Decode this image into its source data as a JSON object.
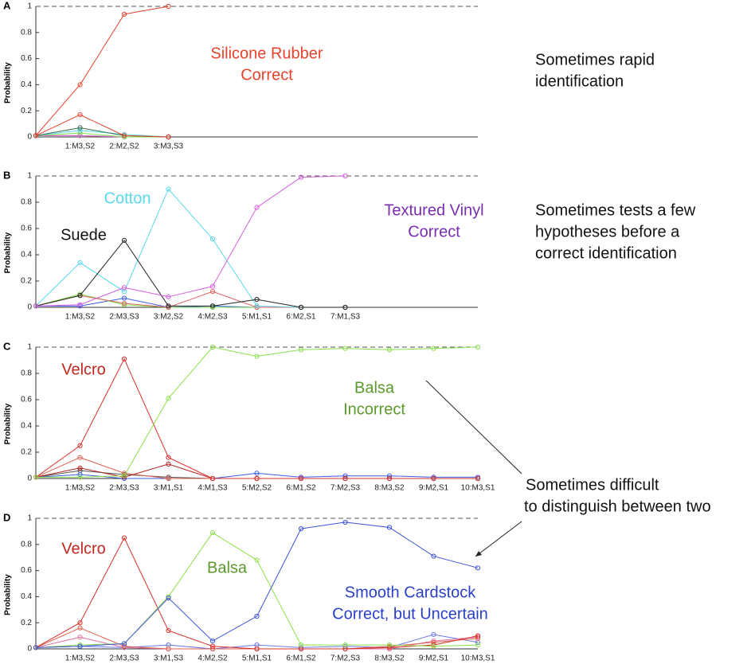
{
  "chart_data": [
    {
      "type": "line",
      "label": "A",
      "ylabel": "Probability",
      "categories": [
        null,
        "1:M3,S2",
        "2:M2,S2",
        "3:M3,S3"
      ],
      "ylim": [
        0,
        1
      ],
      "yticks": [
        0,
        0.2,
        0.4,
        0.6,
        0.8,
        1
      ],
      "hline": 1,
      "series": [
        {
          "color": "#e06a3a",
          "values": [
            0.01,
            0.01,
            0.0,
            0.0
          ]
        },
        {
          "color": "#d65ee0",
          "values": [
            0.01,
            0.01,
            0.0,
            0.0
          ]
        },
        {
          "color": "#7ee04a",
          "values": [
            0.01,
            0.03,
            0.0,
            0.0
          ]
        },
        {
          "color": "#5ad8ec",
          "values": [
            0.01,
            0.05,
            0.02,
            0.0
          ]
        },
        {
          "color": "#3a6a50",
          "values": [
            0.01,
            0.07,
            0.01,
            0.0
          ]
        },
        {
          "color": "#e8412c",
          "values": [
            0.01,
            0.17,
            0.01,
            0.0
          ]
        },
        {
          "color": "#e8412c",
          "values": [
            0.01,
            0.4,
            0.94,
            1.0
          ]
        }
      ],
      "annotations": [
        {
          "lines": [
            "Silicone Rubber",
            "Correct"
          ],
          "color": "#e8412c"
        }
      ]
    },
    {
      "type": "line",
      "label": "B",
      "ylabel": "Probability",
      "categories": [
        null,
        "1:M3,S2",
        "2:M3,S3",
        "3:M2,S2",
        "4:M2,S3",
        "5:M1,S1",
        "6:M2,S1",
        "7:M1,S3"
      ],
      "ylim": [
        0,
        1
      ],
      "yticks": [
        0,
        0.2,
        0.4,
        0.6,
        0.8,
        1
      ],
      "hline": 1,
      "series": [
        {
          "color": "#3c5ce6",
          "values": [
            0.01,
            0.01,
            0.07,
            0.0,
            0.01,
            0.0,
            0.0,
            0.0
          ]
        },
        {
          "color": "#7ee04a",
          "values": [
            0.01,
            0.1,
            0.02,
            0.0,
            0.0,
            0.0,
            0.0,
            0.0
          ]
        },
        {
          "color": "#e06060",
          "values": [
            0.01,
            0.09,
            0.03,
            0.0,
            0.12,
            0.0,
            0.0,
            0.0
          ]
        },
        {
          "color": "#5ad8ec",
          "values": [
            0.01,
            0.34,
            0.12,
            0.9,
            0.52,
            0.01,
            0.0,
            0.0
          ]
        },
        {
          "color": "#222222",
          "values": [
            0.01,
            0.09,
            0.51,
            0.01,
            0.01,
            0.06,
            0.0,
            0.0
          ]
        },
        {
          "color": "#d65ee0",
          "values": [
            0.01,
            0.02,
            0.15,
            0.08,
            0.16,
            0.76,
            0.99,
            1.0
          ]
        }
      ],
      "annotations": [
        {
          "lines": [
            "Cotton"
          ],
          "color": "#5ad8ec"
        },
        {
          "lines": [
            "Suede"
          ],
          "color": "#111111"
        },
        {
          "lines": [
            "Textured Vinyl",
            "Correct"
          ],
          "color": "#7a2db0"
        }
      ]
    },
    {
      "type": "line",
      "label": "C",
      "ylabel": "Probability",
      "categories": [
        null,
        "1:M3,S2",
        "2:M3,S3",
        "3:M1,S1",
        "4:M1,S3",
        "5:M2,S2",
        "6:M1,S2",
        "7:M2,S3",
        "8:M3,S2",
        "9:M2,S1",
        "10:M3,S1"
      ],
      "ylim": [
        0,
        1
      ],
      "yticks": [
        0,
        0.2,
        0.4,
        0.6,
        0.8,
        1
      ],
      "hline": 1,
      "series": [
        {
          "color": "#555555",
          "values": [
            0.01,
            0.06,
            0.03,
            0.01,
            0.0,
            0.0,
            0.0,
            0.0,
            0.0,
            0.0,
            0.0
          ]
        },
        {
          "color": "#3c5ce6",
          "values": [
            0.01,
            0.03,
            0.0,
            0.0,
            0.0,
            0.04,
            0.01,
            0.02,
            0.02,
            0.01,
            0.01
          ]
        },
        {
          "color": "#b82020",
          "values": [
            0.01,
            0.08,
            0.01,
            0.11,
            0.0,
            0.0,
            0.0,
            0.0,
            0.0,
            0.0,
            0.0
          ]
        },
        {
          "color": "#e06050",
          "values": [
            0.01,
            0.16,
            0.04,
            0.0,
            0.0,
            0.0,
            0.0,
            0.0,
            0.0,
            0.0,
            0.0
          ]
        },
        {
          "color": "#d9302a",
          "values": [
            0.01,
            0.25,
            0.91,
            0.16,
            0.0,
            0.0,
            0.0,
            0.0,
            0.0,
            0.0,
            0.0
          ]
        },
        {
          "color": "#8be04a",
          "values": [
            0.01,
            0.01,
            0.02,
            0.61,
            1.0,
            0.93,
            0.98,
            0.99,
            0.98,
            0.99,
            1.0
          ]
        }
      ],
      "annotations": [
        {
          "lines": [
            "Velcro"
          ],
          "color": "#c0281f"
        },
        {
          "lines": [
            "Balsa",
            "Incorrect"
          ],
          "color": "#5a9a2a"
        }
      ]
    },
    {
      "type": "line",
      "label": "D",
      "ylabel": "Probability",
      "categories": [
        null,
        "1:M3,S2",
        "2:M3,S3",
        "3:M1,S3",
        "4:M2,S2",
        "5:M1,S1",
        "6:M1,S2",
        "7:M2,S3",
        "8:M3,S2",
        "9:M2,S1",
        "10:M3,S1"
      ],
      "ylim": [
        0,
        1
      ],
      "yticks": [
        0,
        0.2,
        0.4,
        0.6,
        0.8,
        1
      ],
      "hline": 1,
      "series": [
        {
          "color": "#6a7ae8",
          "values": [
            0.01,
            0.02,
            0.01,
            0.03,
            0.0,
            0.03,
            0.01,
            0.02,
            0.01,
            0.11,
            0.05
          ]
        },
        {
          "color": "#e070a0",
          "values": [
            0.01,
            0.09,
            0.01,
            0.0,
            0.0,
            0.0,
            0.0,
            0.0,
            0.0,
            0.06,
            0.09
          ]
        },
        {
          "color": "#e06050",
          "values": [
            0.01,
            0.16,
            0.02,
            0.0,
            0.0,
            0.0,
            0.0,
            0.0,
            0.02,
            0.05,
            0.08
          ]
        },
        {
          "color": "#d9302a",
          "values": [
            0.01,
            0.2,
            0.85,
            0.14,
            0.02,
            0.0,
            0.0,
            0.0,
            0.01,
            0.03,
            0.1
          ]
        },
        {
          "color": "#8be04a",
          "values": [
            0.01,
            0.03,
            0.04,
            0.4,
            0.89,
            0.68,
            0.03,
            0.03,
            0.03,
            0.02,
            0.03
          ]
        },
        {
          "color": "#3c52d8",
          "values": [
            0.01,
            0.02,
            0.04,
            0.39,
            0.06,
            0.25,
            0.92,
            0.97,
            0.93,
            0.71,
            0.62
          ]
        }
      ],
      "annotations": [
        {
          "lines": [
            "Velcro"
          ],
          "color": "#c0281f"
        },
        {
          "lines": [
            "Balsa"
          ],
          "color": "#5a9a2a"
        },
        {
          "lines": [
            "Smooth Cardstock",
            "Correct, but Uncertain"
          ],
          "color": "#2a3fc8"
        }
      ]
    }
  ],
  "captions": [
    [
      "Sometimes rapid",
      "identification"
    ],
    [
      "Sometimes tests a few",
      "hypotheses before a",
      "correct identification"
    ],
    [
      "Sometimes difficult",
      "to distinguish between two"
    ]
  ]
}
